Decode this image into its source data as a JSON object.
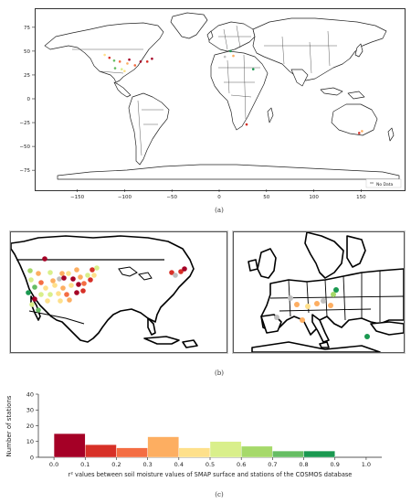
{
  "panels": {
    "a": {
      "caption": "(a)",
      "x_ticks": [
        -150,
        -100,
        -50,
        0,
        50,
        100,
        150
      ],
      "y_ticks": [
        75,
        50,
        25,
        0,
        -25,
        -50,
        -75
      ],
      "xlim": [
        -195,
        195
      ],
      "ylim": [
        -95,
        95
      ],
      "legend": {
        "label": "No Data",
        "color": "#bfbfbf"
      },
      "stations": [
        {
          "lon": -122,
          "lat": 47,
          "color": "#fee08b"
        },
        {
          "lon": -117,
          "lat": 44,
          "color": "#d73027"
        },
        {
          "lon": -112,
          "lat": 41,
          "color": "#66bd63"
        },
        {
          "lon": -106,
          "lat": 40,
          "color": "#f46d43"
        },
        {
          "lon": -111,
          "lat": 33,
          "color": "#66bd63"
        },
        {
          "lon": -98,
          "lat": 38,
          "color": "#fdae61"
        },
        {
          "lon": -96,
          "lat": 42,
          "color": "#a50026"
        },
        {
          "lon": -90,
          "lat": 36,
          "color": "#f46d43"
        },
        {
          "lon": -84,
          "lat": 40,
          "color": "#a50026"
        },
        {
          "lon": -77,
          "lat": 40,
          "color": "#d73027"
        },
        {
          "lon": -72,
          "lat": 43,
          "color": "#a50026"
        },
        {
          "lon": -101,
          "lat": 30,
          "color": "#fee08b"
        },
        {
          "lon": -104,
          "lat": 32,
          "color": "#d9ef8b"
        },
        {
          "lon": 11,
          "lat": 51,
          "color": "#1a9850"
        },
        {
          "lon": 14,
          "lat": 46,
          "color": "#fdae61"
        },
        {
          "lon": 5,
          "lat": 45,
          "color": "#bfbfbf"
        },
        {
          "lon": 35,
          "lat": 32,
          "color": "#1a9850"
        },
        {
          "lon": 28,
          "lat": -26,
          "color": "#d73027"
        },
        {
          "lon": 147,
          "lat": -35,
          "color": "#d73027"
        },
        {
          "lon": 150,
          "lat": -33,
          "color": "#fdae61"
        }
      ]
    },
    "b": {
      "caption": "(b)",
      "na_stations": [
        {
          "x": 37,
          "y": 29,
          "color": "#a50026"
        },
        {
          "x": 21,
          "y": 42,
          "color": "#a6d96a"
        },
        {
          "x": 30,
          "y": 45,
          "color": "#fdae61"
        },
        {
          "x": 43,
          "y": 44,
          "color": "#d9ef8b"
        },
        {
          "x": 56,
          "y": 45,
          "color": "#fdae61"
        },
        {
          "x": 63,
          "y": 45,
          "color": "#fee08b"
        },
        {
          "x": 72,
          "y": 41,
          "color": "#fdae61"
        },
        {
          "x": 22,
          "y": 52,
          "color": "#d9ef8b"
        },
        {
          "x": 33,
          "y": 55,
          "color": "#f46d43"
        },
        {
          "x": 46,
          "y": 53,
          "color": "#fdae61"
        },
        {
          "x": 53,
          "y": 51,
          "color": "#bfbfbf"
        },
        {
          "x": 58,
          "y": 50,
          "color": "#a50026"
        },
        {
          "x": 68,
          "y": 51,
          "color": "#a50026"
        },
        {
          "x": 76,
          "y": 49,
          "color": "#fdae61"
        },
        {
          "x": 84,
          "y": 47,
          "color": "#d9ef8b"
        },
        {
          "x": 89,
          "y": 41,
          "color": "#d73027"
        },
        {
          "x": 94,
          "y": 39,
          "color": "#d9ef8b"
        },
        {
          "x": 26,
          "y": 60,
          "color": "#66bd63"
        },
        {
          "x": 38,
          "y": 61,
          "color": "#fee08b"
        },
        {
          "x": 48,
          "y": 58,
          "color": "#fee08b"
        },
        {
          "x": 57,
          "y": 61,
          "color": "#fdae61"
        },
        {
          "x": 66,
          "y": 58,
          "color": "#fee08b"
        },
        {
          "x": 74,
          "y": 57,
          "color": "#a50026"
        },
        {
          "x": 80,
          "y": 56,
          "color": "#f46d43"
        },
        {
          "x": 87,
          "y": 52,
          "color": "#d73027"
        },
        {
          "x": 91,
          "y": 47,
          "color": "#fee08b"
        },
        {
          "x": 19,
          "y": 66,
          "color": "#1a9850"
        },
        {
          "x": 33,
          "y": 68,
          "color": "#d9ef8b"
        },
        {
          "x": 43,
          "y": 68,
          "color": "#d9ef8b"
        },
        {
          "x": 52,
          "y": 67,
          "color": "#fee08b"
        },
        {
          "x": 61,
          "y": 68,
          "color": "#f46d43"
        },
        {
          "x": 72,
          "y": 66,
          "color": "#a50026"
        },
        {
          "x": 79,
          "y": 64,
          "color": "#d73027"
        },
        {
          "x": 26,
          "y": 73,
          "color": "#a50026"
        },
        {
          "x": 40,
          "y": 75,
          "color": "#fee08b"
        },
        {
          "x": 54,
          "y": 75,
          "color": "#fee08b"
        },
        {
          "x": 64,
          "y": 74,
          "color": "#fdae61"
        },
        {
          "x": 23,
          "y": 79,
          "color": "#d9ef8b"
        },
        {
          "x": 30,
          "y": 85,
          "color": "#66bd63"
        },
        {
          "x": 176,
          "y": 44,
          "color": "#d73027"
        },
        {
          "x": 180,
          "y": 47,
          "color": "#bfbfbf"
        },
        {
          "x": 186,
          "y": 43,
          "color": "#d73027"
        },
        {
          "x": 190,
          "y": 40,
          "color": "#a50026"
        }
      ],
      "eu_stations": [
        {
          "x": 112,
          "y": 63,
          "color": "#1a9850"
        },
        {
          "x": 109,
          "y": 68,
          "color": "#a6d96a"
        },
        {
          "x": 62,
          "y": 72,
          "color": "#bfbfbf"
        },
        {
          "x": 69,
          "y": 79,
          "color": "#fdae61"
        },
        {
          "x": 81,
          "y": 81,
          "color": "#fee08b"
        },
        {
          "x": 91,
          "y": 78,
          "color": "#fdae61"
        },
        {
          "x": 98,
          "y": 75,
          "color": "#bfbfbf"
        },
        {
          "x": 106,
          "y": 80,
          "color": "#fdae61"
        },
        {
          "x": 47,
          "y": 93,
          "color": "#bfbfbf"
        },
        {
          "x": 75,
          "y": 96,
          "color": "#fdae61"
        },
        {
          "x": 146,
          "y": 114,
          "color": "#1a9850"
        }
      ]
    },
    "c": {
      "caption": "(c)"
    }
  },
  "chart_data": {
    "type": "bar",
    "categories": [
      "0.0",
      "0.1",
      "0.2",
      "0.3",
      "0.4",
      "0.5",
      "0.6",
      "0.7",
      "0.8",
      "0.9",
      "1.0"
    ],
    "bins": [
      {
        "from": 0.0,
        "to": 0.1,
        "value": 15,
        "color": "#a50026"
      },
      {
        "from": 0.1,
        "to": 0.2,
        "value": 8,
        "color": "#d73027"
      },
      {
        "from": 0.2,
        "to": 0.3,
        "value": 6,
        "color": "#f46d43"
      },
      {
        "from": 0.3,
        "to": 0.4,
        "value": 13,
        "color": "#fdae61"
      },
      {
        "from": 0.4,
        "to": 0.5,
        "value": 6,
        "color": "#fee08b"
      },
      {
        "from": 0.5,
        "to": 0.6,
        "value": 10,
        "color": "#d9ef8b"
      },
      {
        "from": 0.6,
        "to": 0.7,
        "value": 7,
        "color": "#a6d96a"
      },
      {
        "from": 0.7,
        "to": 0.8,
        "value": 4,
        "color": "#66bd63"
      },
      {
        "from": 0.8,
        "to": 0.9,
        "value": 4,
        "color": "#1a9850"
      },
      {
        "from": 0.9,
        "to": 1.0,
        "value": 0,
        "color": "#006837"
      }
    ],
    "y_ticks": [
      0,
      10,
      20,
      30,
      40
    ],
    "xlabel": "r² values between soil moisture values of SMAP surface and stations of the COSMOS database",
    "ylabel": "Number of stations",
    "ylim": [
      0,
      40
    ],
    "xlim": [
      -0.05,
      1.05
    ]
  }
}
